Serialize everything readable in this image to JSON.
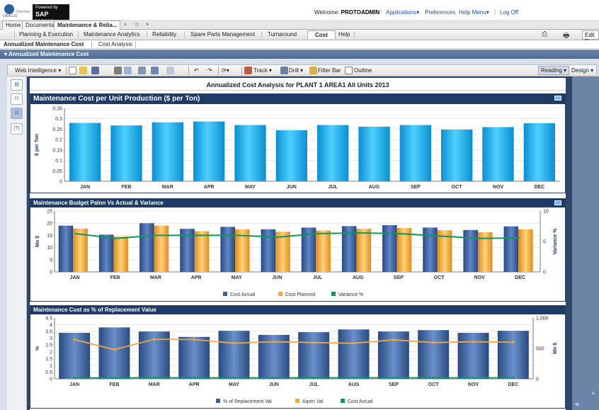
{
  "header": {
    "oracle_text": "ORACLE",
    "onemain_text": "OneView",
    "sap_line1": "Powered by",
    "sap_line2": "SAP HANA",
    "welcome_prefix": "Welcome:",
    "username": "PROTOADMIN",
    "links": [
      "Applications▾",
      "Preferences",
      "Help Menu▾",
      "Log Off"
    ]
  },
  "app_tabs": [
    "Home",
    "Documents",
    "Maintenance & Relia..."
  ],
  "tab_icons": "⌕ ☆ ▾",
  "module_tabs": [
    "Planning & Execution",
    "Maintenance Analytics",
    "Reliability",
    "Spare Parts Management",
    "Turnaround",
    "Cost",
    "Help"
  ],
  "module_active": "Cost",
  "edit_label": "Edit B",
  "sub_tabs": [
    "Annualized Maintenance Cost",
    "Cost Analysis"
  ],
  "section_title": "▾ Annualized Maintenance Cost",
  "toolbar": {
    "web_intelligence": "Web Intelligence ▾",
    "track": "Track ▾",
    "drill": "Drill ▾",
    "filter_bar": "Filter Bar",
    "outline": "Outline",
    "reading": "Reading ▾",
    "design": "Design ▾"
  },
  "report_title": "Annualized Cost Analysis for PLANT 1  AREA1  All Units  2013",
  "colors": {
    "cyan_bar": "#1aa7e6",
    "actual_bar": "#3a5f9f",
    "planned_bar": "#f2a93b",
    "variance_line": "#13955d",
    "header_navy": "#1f3b65"
  },
  "chart_data": [
    {
      "type": "bar",
      "title": "Maintenance Cost per Unit Production ($ per Ton)",
      "categories": [
        "JAN",
        "FEB",
        "MAR",
        "APR",
        "MAY",
        "JUN",
        "JUL",
        "AUG",
        "SEP",
        "OCT",
        "NOV",
        "DEC"
      ],
      "values": [
        0.28,
        0.268,
        0.283,
        0.287,
        0.27,
        0.245,
        0.27,
        0.262,
        0.27,
        0.248,
        0.26,
        0.279
      ],
      "ylabel": "$ per Ton",
      "ylim": [
        0,
        0.35
      ],
      "yticks": [
        "0",
        "0.05",
        "0.1",
        "0.15",
        "0.2",
        "0.25",
        "0.3",
        "0.35"
      ]
    },
    {
      "type": "bar",
      "title": "Maintenance Budget Palnn Vs Actual & Variance",
      "categories": [
        "JAN",
        "FEB",
        "MAR",
        "APR",
        "MAY",
        "JUN",
        "JUL",
        "AUG",
        "SEP",
        "OCT",
        "NOV",
        "DEC"
      ],
      "series": [
        {
          "name": "Cost Actual",
          "values": [
            19,
            15.3,
            20,
            17.7,
            18.5,
            17.5,
            18.2,
            18.8,
            19.2,
            18.2,
            17.2,
            18.7
          ]
        },
        {
          "name": "Cost Planned",
          "values": [
            17.8,
            14.5,
            19,
            16.7,
            17.5,
            16.5,
            17,
            17.7,
            18,
            17.1,
            16.3,
            17.5
          ]
        },
        {
          "name": "Variance %",
          "values": [
            6.3,
            5.5,
            6,
            6,
            6,
            5.7,
            6.3,
            6.4,
            6.3,
            5.9,
            5.5,
            5.6
          ]
        }
      ],
      "ylabel": "Mn $",
      "y2label": "Variance %",
      "ylim": [
        0,
        25
      ],
      "y2lim": [
        0,
        10
      ],
      "yticks": [
        "0",
        "5",
        "10",
        "15",
        "20",
        "25"
      ],
      "y2ticks": [
        "0",
        "5",
        "10"
      ],
      "legend": "bottom"
    },
    {
      "type": "bar",
      "title": "Maintenance Cost as % of Replacement Value",
      "categories": [
        "JAN",
        "FEB",
        "MAR",
        "APR",
        "MAY",
        "JUN",
        "JUL",
        "AUG",
        "SEP",
        "OCT",
        "NOV",
        "DEC"
      ],
      "series": [
        {
          "name": "% of Replacement Val",
          "values": [
            3.4,
            3.8,
            3.5,
            3.1,
            3.55,
            3.25,
            3.45,
            3.65,
            3.5,
            3.6,
            3.4,
            3.55
          ]
        },
        {
          "name": "Aqstn Val",
          "values": [
            645,
            480,
            650,
            645,
            585,
            610,
            595,
            585,
            640,
            595,
            610,
            600
          ]
        },
        {
          "name": "Cost Actual",
          "values": [
            19,
            15.3,
            20,
            17.7,
            18.5,
            17.5,
            18.2,
            18.8,
            19.2,
            18.2,
            17.2,
            18.7
          ]
        }
      ],
      "ylabel": "%",
      "y2label": "Mn $",
      "ylim": [
        0,
        4.5
      ],
      "y2lim": [
        0,
        1000
      ],
      "yticks": [
        "0",
        "0.5",
        "1",
        "1.5",
        "2",
        "2.5",
        "3",
        "3.5",
        "4",
        "4.5"
      ],
      "y2ticks": [
        "0",
        "500",
        "1,000"
      ],
      "legend": "bottom"
    }
  ]
}
